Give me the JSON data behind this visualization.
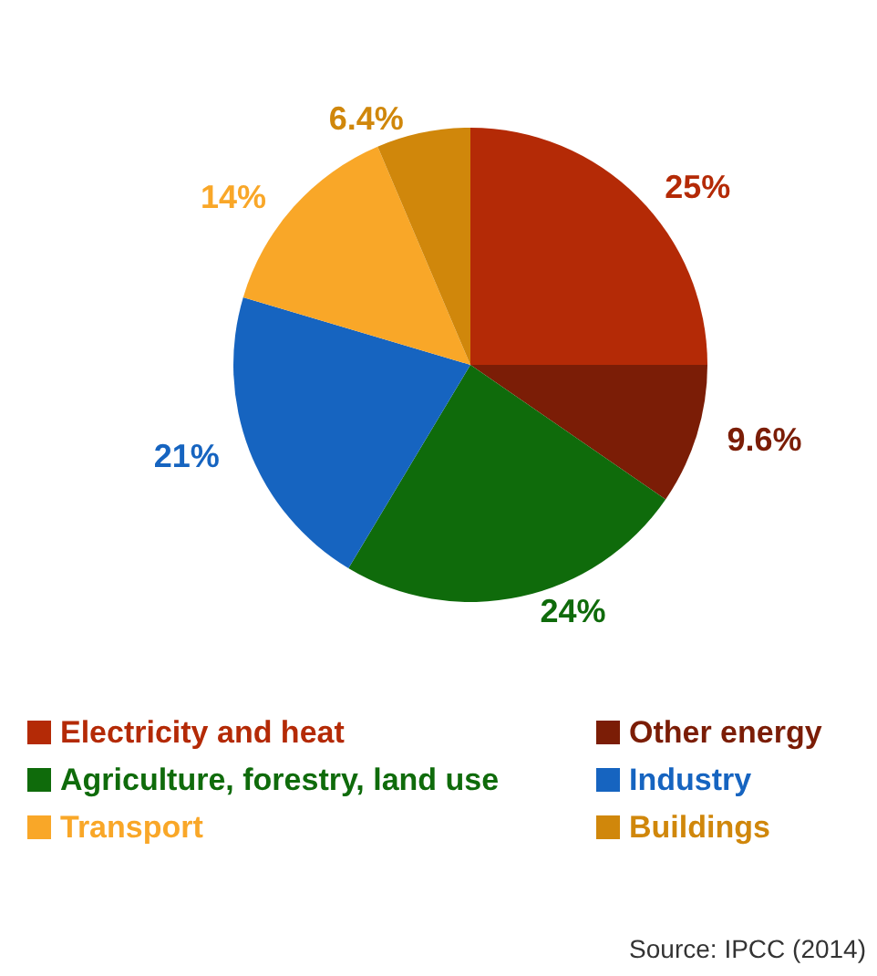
{
  "chart_data": {
    "type": "pie",
    "categories": [
      "Electricity and heat",
      "Other energy",
      "Agriculture, forestry, land use",
      "Industry",
      "Transport",
      "Buildings"
    ],
    "values": [
      25,
      9.6,
      24,
      21,
      14,
      6.4
    ],
    "value_labels": [
      "25%",
      "9.6%",
      "24%",
      "21%",
      "14%",
      "6.4%"
    ],
    "colors": [
      "#b42a06",
      "#7b1d06",
      "#0f6b0b",
      "#1664c0",
      "#f9a728",
      "#d0870b"
    ],
    "legend": "bottom",
    "annotations": [
      "Source: IPCC (2014)"
    ]
  }
}
